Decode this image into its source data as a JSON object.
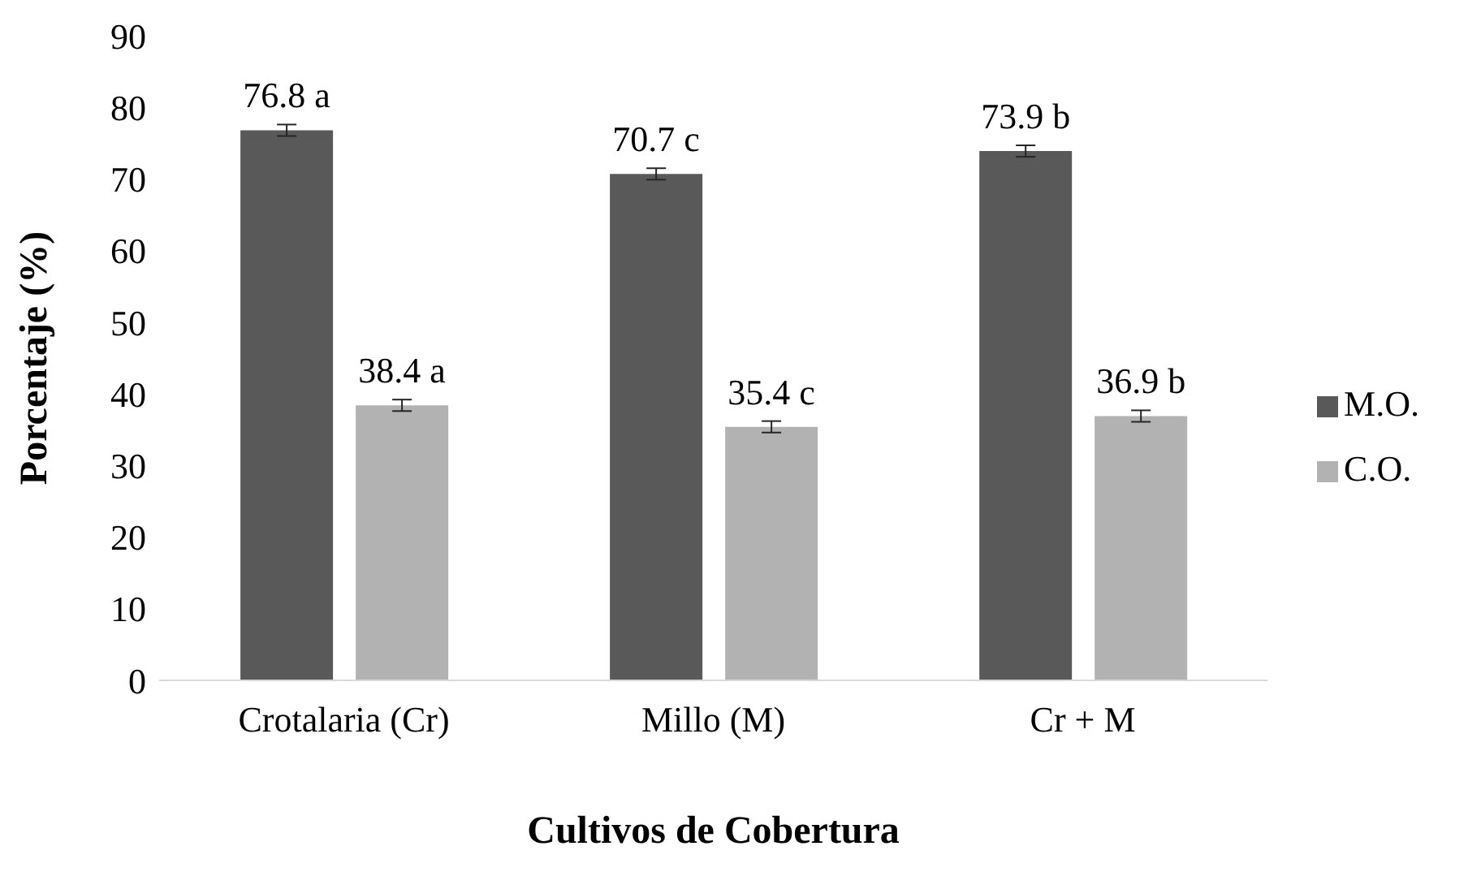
{
  "chart_data": {
    "type": "bar",
    "xlabel": "Cultivos de Cobertura",
    "ylabel": "Porcentaje (%)",
    "categories": [
      "Crotalaria (Cr)",
      "Millo (M)",
      "Cr + M"
    ],
    "series": [
      {
        "name": "M.O.",
        "color": "#595959",
        "values": [
          76.8,
          70.7,
          73.9
        ],
        "errors": [
          0.8,
          0.8,
          0.8
        ],
        "value_labels": [
          "76.8 a",
          "70.7 c",
          "73.9 b"
        ]
      },
      {
        "name": "C.O.",
        "color": "#b2b2b2",
        "values": [
          38.4,
          35.4,
          36.9
        ],
        "errors": [
          0.8,
          0.8,
          0.8
        ],
        "value_labels": [
          "38.4 a",
          "35.4 c",
          "36.9 b"
        ]
      }
    ],
    "ylim": [
      0,
      90
    ],
    "yticks": [
      0,
      10,
      20,
      30,
      40,
      50,
      60,
      70,
      80,
      90
    ],
    "grid": false,
    "legend": "right"
  }
}
